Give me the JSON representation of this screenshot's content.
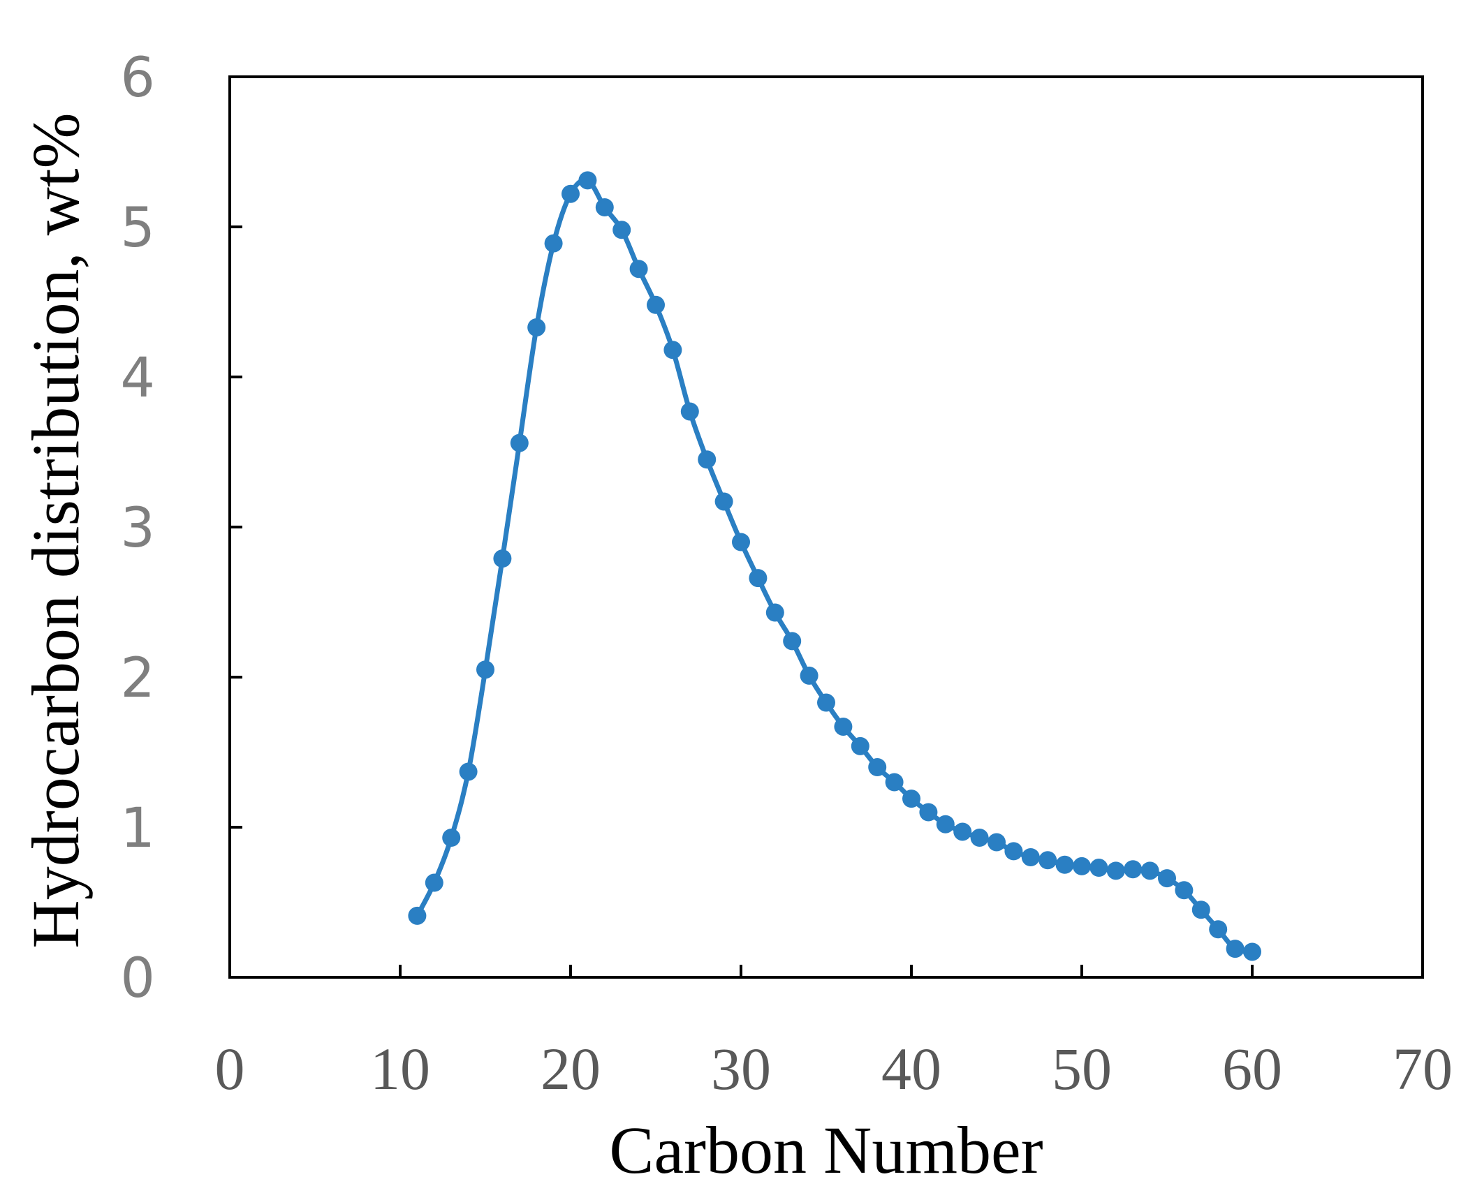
{
  "chart_data": {
    "type": "line",
    "xlabel": "Carbon Number",
    "ylabel": "Hydrocarbon distribution, wt%",
    "xlim": [
      0,
      70
    ],
    "ylim": [
      0,
      6
    ],
    "xticks": [
      "0",
      "10",
      "20",
      "30",
      "40",
      "50",
      "60",
      "70"
    ],
    "yticks": [
      "0",
      "1",
      "2",
      "3",
      "4",
      "5",
      "6"
    ],
    "grid": false,
    "legend": "none",
    "series": [
      {
        "color": "#2a7fc3",
        "marker": "circle",
        "smooth": true,
        "x": [
          11,
          12,
          13,
          14,
          15,
          16,
          17,
          18,
          19,
          20,
          21,
          22,
          23,
          24,
          25,
          26,
          27,
          28,
          29,
          30,
          31,
          32,
          33,
          34,
          35,
          36,
          37,
          38,
          39,
          40,
          41,
          42,
          43,
          44,
          45,
          46,
          47,
          48,
          49,
          50,
          51,
          52,
          53,
          54,
          55,
          56,
          57,
          58,
          59,
          60
        ],
        "y": [
          0.41,
          0.63,
          0.93,
          1.37,
          2.05,
          2.79,
          3.56,
          4.33,
          4.89,
          5.22,
          5.31,
          5.13,
          4.98,
          4.72,
          4.48,
          4.18,
          3.77,
          3.45,
          3.17,
          2.9,
          2.66,
          2.43,
          2.24,
          2.01,
          1.83,
          1.67,
          1.54,
          1.4,
          1.3,
          1.19,
          1.1,
          1.02,
          0.97,
          0.93,
          0.9,
          0.84,
          0.8,
          0.78,
          0.75,
          0.74,
          0.73,
          0.71,
          0.72,
          0.71,
          0.66,
          0.58,
          0.45,
          0.32,
          0.19,
          0.17
        ]
      }
    ]
  }
}
